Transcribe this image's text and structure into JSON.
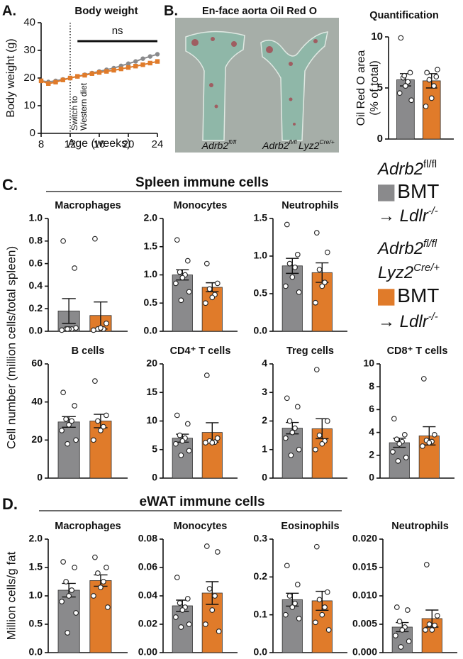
{
  "chart_data": [
    {
      "type": "line",
      "panel": "A.",
      "title": "Body weight",
      "xlabel": "Age (weeks)",
      "ylabel": "Body weight (g)",
      "x": [
        8,
        9,
        10,
        11,
        12,
        13,
        14,
        15,
        16,
        17,
        18,
        19,
        20,
        21,
        22,
        23,
        24
      ],
      "series": [
        {
          "color": "#8a8a8c",
          "values": [
            19,
            18.6,
            19,
            19.5,
            20,
            20.6,
            21.2,
            21.8,
            22.4,
            23,
            23.6,
            24.4,
            25.2,
            26,
            27,
            27.8,
            28.6
          ]
        },
        {
          "color": "#e07b2a",
          "values": [
            19,
            18,
            18.5,
            19.3,
            20,
            20.6,
            21,
            21.6,
            22,
            22.4,
            22.8,
            23.3,
            23.8,
            24.3,
            24.8,
            25.4,
            26
          ]
        }
      ],
      "xlim": [
        8,
        24
      ],
      "xticks": [
        8,
        12,
        16,
        20,
        24
      ],
      "ylim": [
        0,
        40
      ],
      "yticks": [
        0,
        10,
        20,
        30,
        40
      ],
      "vline": {
        "x": 12,
        "label": [
          "Switch to",
          "Western diet"
        ]
      },
      "annotation": {
        "text": "ns",
        "x": [
          13,
          24
        ]
      }
    },
    {
      "type": "bar",
      "title": "Quantification",
      "ylabel": [
        "Oil Red O area",
        "(% of total)"
      ],
      "ylim": [
        0,
        10
      ],
      "yticks": [
        0,
        5,
        10
      ],
      "colors": [
        "#8a8a8c",
        "#e07b2a"
      ],
      "values": [
        5.8,
        5.7
      ],
      "errors": [
        0.6,
        0.7
      ],
      "points": [
        [
          9.9,
          6.5,
          6.0,
          5.6,
          5.2,
          4.5,
          3.8,
          6.2
        ],
        [
          6.5,
          6.1,
          5.8,
          5.2,
          4.0,
          3.2,
          6.8
        ]
      ]
    },
    {
      "type": "bar",
      "title": "Macrophages",
      "ylim": [
        0,
        1
      ],
      "yticks": [
        {
          "value": 0,
          "label": "0.0"
        },
        0.2,
        0.4,
        0.6,
        0.8,
        {
          "value": 1,
          "label": "1.0"
        }
      ],
      "colors": [
        "#8a8a8c",
        "#e07b2a"
      ],
      "values": [
        0.18,
        0.14
      ],
      "errors": [
        0.11,
        0.12
      ],
      "points": [
        [
          0.8,
          0.56,
          0.02,
          0.02,
          0.02,
          0.01,
          0.03,
          0.02
        ],
        [
          0.82,
          0.07,
          0.02,
          0.02,
          0.03,
          0.01
        ]
      ]
    },
    {
      "type": "bar",
      "title": "Monocytes",
      "ylim": [
        0,
        2
      ],
      "yticks": [
        {
          "value": 0,
          "label": "0.0"
        },
        0.5,
        {
          "value": 1,
          "label": "1.0"
        },
        1.5,
        {
          "value": 2,
          "label": "2.0"
        }
      ],
      "colors": [
        "#8a8a8c",
        "#e07b2a"
      ],
      "values": [
        1.0,
        0.78
      ],
      "errors": [
        0.09,
        0.08
      ],
      "points": [
        [
          1.62,
          1.25,
          1.05,
          1.0,
          0.95,
          0.85,
          0.7,
          0.55
        ],
        [
          1.2,
          0.85,
          0.75,
          0.65,
          0.6,
          0.5
        ]
      ]
    },
    {
      "type": "bar",
      "title": "Neutrophils",
      "ylim": [
        0,
        1.5
      ],
      "yticks": [
        {
          "value": 0,
          "label": "0.0"
        },
        0.5,
        {
          "value": 1,
          "label": "1.0"
        },
        1.5
      ],
      "colors": [
        "#8a8a8c",
        "#e07b2a"
      ],
      "values": [
        0.87,
        0.78
      ],
      "errors": [
        0.1,
        0.13
      ],
      "points": [
        [
          1.42,
          1.02,
          0.9,
          0.85,
          0.72,
          0.6,
          0.52
        ],
        [
          1.31,
          1.05,
          0.82,
          0.65,
          0.6,
          0.38
        ]
      ]
    },
    {
      "type": "bar",
      "title": "B cells",
      "ylim": [
        0,
        60
      ],
      "yticks": [
        0,
        20,
        40,
        60
      ],
      "colors": [
        "#8a8a8c",
        "#e07b2a"
      ],
      "values": [
        29.5,
        30
      ],
      "errors": [
        2.8,
        3.5
      ],
      "points": [
        [
          45,
          38,
          31,
          30,
          28,
          25,
          20,
          18
        ],
        [
          51,
          33,
          30,
          27,
          25,
          20
        ]
      ]
    },
    {
      "type": "bar",
      "title": "CD4⁺ T cells",
      "ylim": [
        0,
        20
      ],
      "yticks": [
        0,
        5,
        10,
        15,
        20
      ],
      "colors": [
        "#8a8a8c",
        "#e07b2a"
      ],
      "values": [
        7,
        8
      ],
      "errors": [
        0.7,
        1.7
      ],
      "points": [
        [
          11,
          9.5,
          7.5,
          7,
          6.5,
          6,
          4.8,
          4
        ],
        [
          18,
          7,
          6.5,
          6.3,
          6.2,
          6.2
        ]
      ]
    },
    {
      "type": "bar",
      "title": "Treg cells",
      "ylim": [
        0,
        4
      ],
      "yticks": [
        0,
        1,
        2,
        3,
        4
      ],
      "colors": [
        "#8a8a8c",
        "#e07b2a"
      ],
      "values": [
        1.75,
        1.73
      ],
      "errors": [
        0.2,
        0.35
      ],
      "points": [
        [
          2.8,
          2.5,
          2.0,
          1.75,
          1.6,
          1.4,
          1.0,
          0.8
        ],
        [
          3.8,
          2.0,
          1.5,
          1.3,
          1.2,
          1.0
        ]
      ]
    },
    {
      "type": "bar",
      "title": "CD8⁺ T cells",
      "ylim": [
        0,
        10
      ],
      "yticks": [
        0,
        2,
        4,
        6,
        8,
        10
      ],
      "colors": [
        "#8a8a8c",
        "#e07b2a"
      ],
      "values": [
        3.1,
        3.7
      ],
      "errors": [
        0.4,
        0.8
      ],
      "points": [
        [
          5.2,
          3.8,
          3.4,
          3.2,
          3.0,
          2.3,
          1.8,
          1.5
        ],
        [
          8.7,
          3.8,
          3.3,
          3.2,
          3.1,
          2.8
        ]
      ]
    },
    {
      "type": "bar",
      "title": "Macrophages",
      "ylim": [
        0,
        2
      ],
      "yticks": [
        {
          "value": 0,
          "label": "0.0"
        },
        0.5,
        {
          "value": 1,
          "label": "1.0"
        },
        1.5,
        {
          "value": 2,
          "label": "2.0"
        }
      ],
      "colors": [
        "#8a8a8c",
        "#e07b2a"
      ],
      "values": [
        1.1,
        1.27
      ],
      "errors": [
        0.12,
        0.1
      ],
      "points": [
        [
          1.6,
          1.5,
          1.25,
          1.1,
          1.0,
          0.9,
          0.7,
          0.35
        ],
        [
          1.68,
          1.5,
          1.4,
          1.25,
          1.15,
          1.0,
          0.8
        ]
      ]
    },
    {
      "type": "bar",
      "title": "Monocytes",
      "ylim": [
        0,
        0.08
      ],
      "yticks": [
        {
          "value": 0,
          "label": "0.00"
        },
        0.02,
        0.04,
        0.06,
        0.08
      ],
      "colors": [
        "#8a8a8c",
        "#e07b2a"
      ],
      "values": [
        0.033,
        0.042
      ],
      "errors": [
        0.004,
        0.008
      ],
      "points": [
        [
          0.053,
          0.038,
          0.035,
          0.032,
          0.03,
          0.025,
          0.02,
          0.018
        ],
        [
          0.075,
          0.071,
          0.045,
          0.04,
          0.03,
          0.02,
          0.015
        ]
      ]
    },
    {
      "type": "bar",
      "title": "Eosinophils",
      "ylim": [
        0,
        0.3
      ],
      "yticks": [
        {
          "value": 0,
          "label": "0.0"
        },
        0.1,
        0.2,
        0.3
      ],
      "colors": [
        "#8a8a8c",
        "#e07b2a"
      ],
      "values": [
        0.14,
        0.137
      ],
      "errors": [
        0.017,
        0.025
      ],
      "points": [
        [
          0.23,
          0.18,
          0.15,
          0.13,
          0.12,
          0.1,
          0.09
        ],
        [
          0.28,
          0.16,
          0.14,
          0.12,
          0.1,
          0.08,
          0.06
        ]
      ]
    },
    {
      "type": "bar",
      "title": "Neutrophils",
      "ylim": [
        0,
        0.02
      ],
      "yticks": [
        {
          "value": 0,
          "label": "0.000"
        },
        0.005,
        {
          "value": 0.01,
          "label": "0.010"
        },
        0.015,
        {
          "value": 0.02,
          "label": "0.020"
        }
      ],
      "colors": [
        "#8a8a8c",
        "#e07b2a"
      ],
      "values": [
        0.0045,
        0.006
      ],
      "errors": [
        0.0008,
        0.0015
      ],
      "points": [
        [
          0.008,
          0.0075,
          0.0055,
          0.0045,
          0.004,
          0.003,
          0.002,
          0.001
        ],
        [
          0.0155,
          0.0065,
          0.005,
          0.0048,
          0.004,
          0.004
        ]
      ]
    }
  ],
  "panel_b": {
    "label": "B.",
    "title": "En-face aorta Oil Red O",
    "labels": [
      [
        {
          "text": "Adrb2",
          "italic": true
        },
        {
          "text": "fl/fl",
          "sup": true,
          "italic": true
        }
      ],
      [
        {
          "text": "Adrb2",
          "italic": true
        },
        {
          "text": "fl/fl ",
          "sup": true,
          "italic": true
        },
        {
          "text": "Lyz2",
          "italic": true
        },
        {
          "text": "Cre/+",
          "sup": true,
          "italic": true
        }
      ]
    ]
  },
  "sections": [
    {
      "label": "C.",
      "title": "Spleen immune cells",
      "ylabel": "Cell number (million cells/total spleen)"
    },
    {
      "label": "D.",
      "title": "eWAT immune cells",
      "ylabel": "Million cells/g fat"
    }
  ],
  "legend": [
    {
      "color": "#8a8a8c",
      "lines": [
        [
          {
            "text": "Adrb2",
            "italic": true
          },
          {
            "text": "fl/fl",
            "sup": true
          }
        ],
        [
          {
            "text": "BMT",
            "swatch": true
          }
        ],
        [
          {
            "text": "→ "
          },
          {
            "text": "Ldlr",
            "italic": true
          },
          {
            "text": "-/-",
            "sup": true,
            "italic": true
          }
        ]
      ]
    },
    {
      "color": "#e07b2a",
      "lines": [
        [
          {
            "text": "Adrb2",
            "italic": true
          },
          {
            "text": "fl/fl",
            "sup": true,
            "italic": true
          }
        ],
        [
          {
            "text": "Lyz2",
            "italic": true
          },
          {
            "text": "Cre/+",
            "sup": true,
            "italic": true
          }
        ],
        [
          {
            "text": "BMT",
            "swatch": true
          }
        ],
        [
          {
            "text": "→ "
          },
          {
            "text": "Ldlr",
            "italic": true
          },
          {
            "text": "-/-",
            "sup": true,
            "italic": true
          }
        ]
      ]
    }
  ]
}
